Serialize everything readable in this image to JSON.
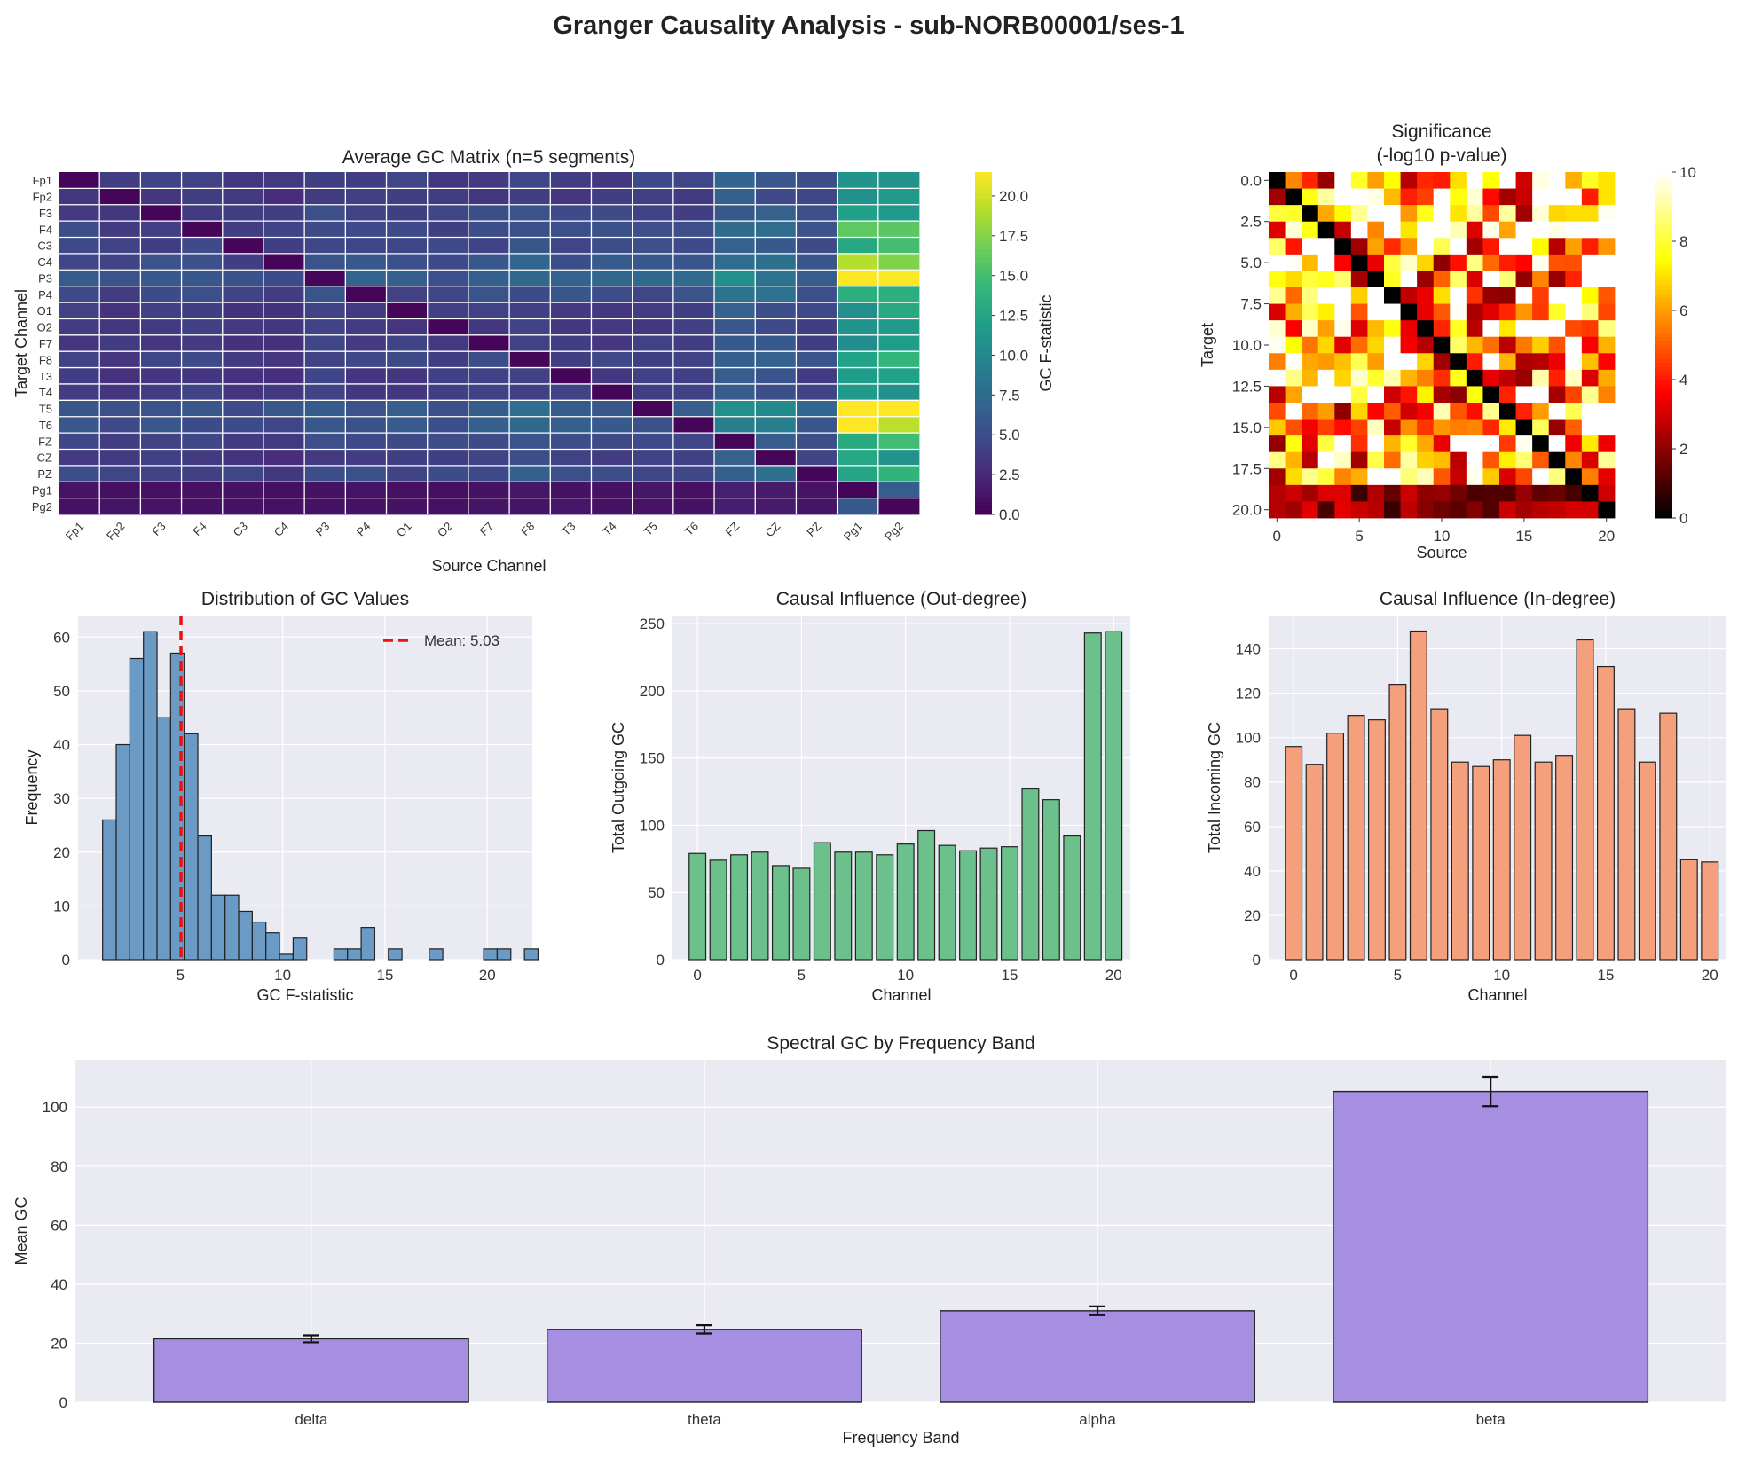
{
  "figure": {
    "title": "Granger Causality Analysis - sub-NORB00001/ses-1"
  },
  "colors": {
    "hist": "#6b9ac4",
    "out": "#6cc08b",
    "in": "#f4a07c",
    "spectral": "#a68fe0",
    "mean_line": "#ee1111",
    "panel_bg": "#eaeaf2"
  },
  "chart_data": [
    {
      "type": "heatmap",
      "title": "Average GC Matrix (n=5 segments)",
      "xlabel": "Source Channel",
      "ylabel": "Target Channel",
      "channels": [
        "Fp1",
        "Fp2",
        "F3",
        "F4",
        "C3",
        "C4",
        "P3",
        "P4",
        "O1",
        "O2",
        "F7",
        "F8",
        "T3",
        "T4",
        "T5",
        "T6",
        "FZ",
        "CZ",
        "PZ",
        "Pg1",
        "Pg2"
      ],
      "colormap": "viridis",
      "colorbar": {
        "label": "GC F-statistic",
        "range": [
          0,
          21.5
        ],
        "ticks": [
          "0.0",
          "2.5",
          "5.0",
          "7.5",
          "10.0",
          "12.5",
          "15.0",
          "17.5",
          "20.0"
        ]
      },
      "grid": true
    },
    {
      "type": "heatmap",
      "title": "Significance\n(-log10 p-value)",
      "xlabel": "Source",
      "ylabel": "Target",
      "size": 21,
      "colormap": "hot",
      "xticks": [
        "0",
        "5",
        "10",
        "15",
        "20"
      ],
      "yticks": [
        "0.0",
        "2.5",
        "5.0",
        "7.5",
        "10.0",
        "12.5",
        "15.0",
        "17.5",
        "20.0"
      ],
      "colorbar": {
        "range": [
          0,
          10
        ],
        "ticks": [
          "0",
          "2",
          "4",
          "6",
          "8",
          "10"
        ]
      }
    },
    {
      "type": "bar",
      "title": "Distribution of GC Values",
      "xlabel": "GC F-statistic",
      "ylabel": "Frequency",
      "bin_start": 1.2,
      "bin_width": 0.665,
      "values": [
        26,
        40,
        56,
        61,
        45,
        57,
        42,
        23,
        12,
        12,
        9,
        7,
        5,
        1,
        4,
        0,
        0,
        2,
        2,
        6,
        0,
        2,
        0,
        0,
        2,
        0,
        0,
        0,
        2,
        2,
        0,
        2
      ],
      "xlim": [
        0,
        22.2
      ],
      "ylim": [
        0,
        64
      ],
      "xticks": [
        5,
        10,
        15,
        20
      ],
      "yticks": [
        0,
        10,
        20,
        30,
        40,
        50,
        60
      ],
      "mean": 5.03,
      "legend": "Mean: 5.03",
      "legend_position": "top-right",
      "grid": true
    },
    {
      "type": "bar",
      "title": "Causal Influence (Out-degree)",
      "xlabel": "Channel",
      "ylabel": "Total Outgoing GC",
      "values": [
        79,
        74,
        78,
        80,
        70,
        68,
        87,
        80,
        80,
        78,
        86,
        96,
        85,
        81,
        83,
        84,
        127,
        119,
        92,
        243,
        244
      ],
      "xlim": [
        -1.2,
        20.8
      ],
      "ylim": [
        0,
        256
      ],
      "xticks": [
        0,
        5,
        10,
        15,
        20
      ],
      "yticks": [
        0,
        50,
        100,
        150,
        200,
        250
      ],
      "grid": true
    },
    {
      "type": "bar",
      "title": "Causal Influence (In-degree)",
      "xlabel": "Channel",
      "ylabel": "Total Incoming GC",
      "values": [
        96,
        88,
        102,
        110,
        108,
        124,
        148,
        113,
        89,
        87,
        90,
        101,
        89,
        92,
        144,
        132,
        113,
        89,
        111,
        45,
        44
      ],
      "xlim": [
        -1.2,
        20.8
      ],
      "ylim": [
        0,
        155
      ],
      "xticks": [
        0,
        5,
        10,
        15,
        20
      ],
      "yticks": [
        0,
        20,
        40,
        60,
        80,
        100,
        120,
        140
      ],
      "grid": true
    },
    {
      "type": "bar",
      "title": "Spectral GC by Frequency Band",
      "xlabel": "Frequency Band",
      "ylabel": "Mean GC",
      "categories": [
        "delta",
        "theta",
        "alpha",
        "beta"
      ],
      "values": [
        21.5,
        24.7,
        31.0,
        105.3
      ],
      "errors": [
        1.2,
        1.4,
        1.5,
        5.0
      ],
      "ylim": [
        0,
        116
      ],
      "yticks": [
        0,
        20,
        40,
        60,
        80,
        100
      ],
      "grid": true
    }
  ]
}
